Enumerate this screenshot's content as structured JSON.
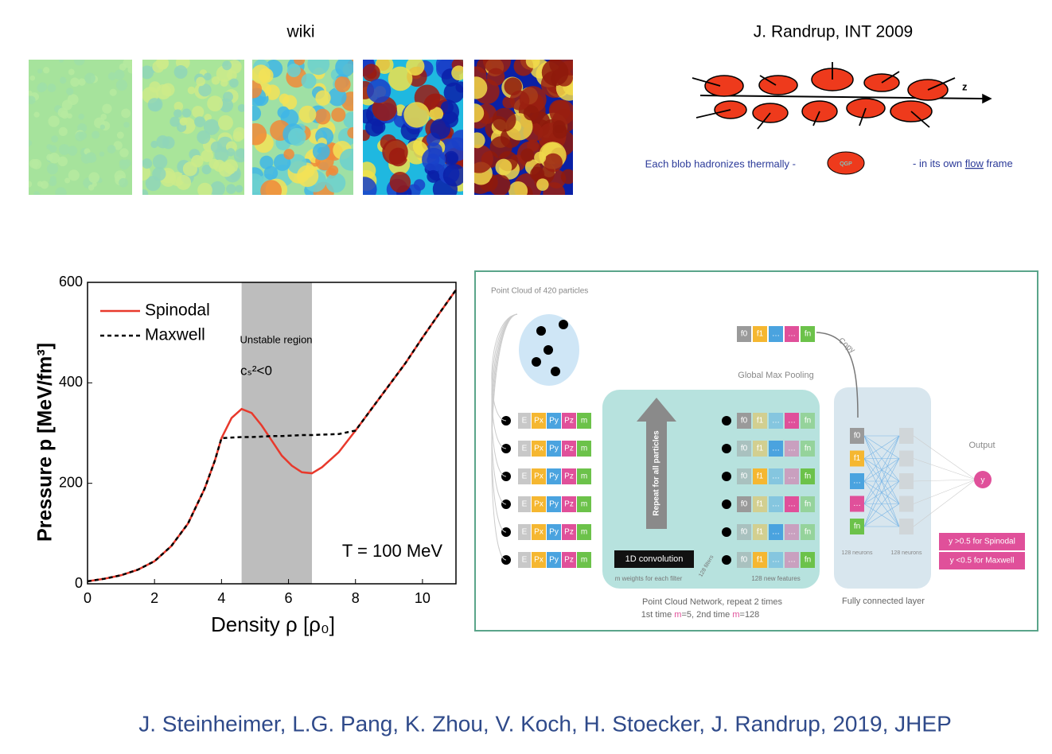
{
  "panels": {
    "wiki": {
      "title": "wiki"
    },
    "randrup": {
      "title": "J. Randrup, INT 2009",
      "axis_label": "z",
      "caption_left": "Each blob hadronizes thermally -",
      "blob_label": "QGP",
      "caption_right_pre": "- in its own",
      "caption_right_link": "flow",
      "caption_right_post": "frame"
    }
  },
  "chart_data": {
    "type": "line",
    "x_label": "Density ρ [ρ₀]",
    "y_label": "Pressure p [MeV/fm³]",
    "annotations": [
      "Unstable region",
      "cₛ²<0",
      "T = 100 MeV"
    ],
    "shaded_region": [
      4.6,
      6.7
    ],
    "legend": "upper left",
    "x": [
      0,
      0.5,
      1,
      1.5,
      2,
      2.5,
      3,
      3.5,
      3.8,
      4,
      4.3,
      4.6,
      4.9,
      5.2,
      5.5,
      5.8,
      6.1,
      6.4,
      6.7,
      7,
      7.5,
      8,
      8.5,
      9,
      9.5,
      10,
      10.5,
      11
    ],
    "series": [
      {
        "name": "Spinodal",
        "color": "#e8392c",
        "dash": false,
        "values": [
          5,
          10,
          17,
          28,
          45,
          75,
          120,
          190,
          245,
          290,
          330,
          348,
          340,
          315,
          285,
          255,
          235,
          222,
          220,
          232,
          262,
          305,
          350,
          395,
          440,
          490,
          538,
          585
        ]
      },
      {
        "name": "Maxwell",
        "color": "#000000",
        "dash": true,
        "values": [
          5,
          10,
          17,
          28,
          45,
          75,
          120,
          190,
          245,
          290,
          291,
          292,
          292,
          293,
          294,
          294,
          295,
          296,
          296,
          297,
          298,
          305,
          350,
          395,
          440,
          490,
          538,
          585
        ]
      }
    ],
    "xlim": [
      0,
      11
    ],
    "ylim": [
      0,
      600
    ],
    "xticks": [
      0,
      2,
      4,
      6,
      8,
      10
    ],
    "yticks": [
      0,
      200,
      400,
      600
    ]
  },
  "network": {
    "title": "Point Cloud of 420 particles",
    "input_rows": [
      [
        "E",
        "Px",
        "Py",
        "Pz",
        "m"
      ],
      [
        "E",
        "Px",
        "Py",
        "Pz",
        "m"
      ],
      [
        "E",
        "Px",
        "Py",
        "Pz",
        "m"
      ],
      [
        "E",
        "Px",
        "Py",
        "Pz",
        "m"
      ],
      [
        "E",
        "Px",
        "Py",
        "Pz",
        "m"
      ],
      [
        "E",
        "Px",
        "Py",
        "Pz",
        "m"
      ]
    ],
    "feature_rows": [
      [
        "f0",
        "f1",
        "…",
        "…",
        "fn"
      ],
      [
        "f0",
        "f1",
        "…",
        "…",
        "fn"
      ],
      [
        "f0",
        "f1",
        "…",
        "…",
        "fn"
      ],
      [
        "f0",
        "f1",
        "…",
        "…",
        "fn"
      ],
      [
        "f0",
        "f1",
        "…",
        "…",
        "fn"
      ],
      [
        "f0",
        "f1",
        "…",
        "…",
        "fn"
      ]
    ],
    "pooled": [
      "f0",
      "f1",
      "…",
      "…",
      "fn"
    ],
    "pool_label": "Global Max Pooling",
    "copy_label": "Copy",
    "repeat_label": "Repeat for all particles",
    "conv_label": "1D convolution",
    "weights_label": "m weights for each filter",
    "filters_label": "128 filters",
    "features_label": "128 new features",
    "pcn_label": "Point Cloud Network, repeat 2 times",
    "pcn_sub": [
      "1st time ",
      "m",
      "=5, 2nd time ",
      "m",
      "=128"
    ],
    "fc_column": [
      "f0",
      "f1",
      "…",
      "…",
      "fn"
    ],
    "neurons_labels": [
      "128 neurons",
      "128 neurons"
    ],
    "fc_label": "Fully connected layer",
    "output_label": "Output",
    "output_node": "y",
    "outputs": [
      "y >0.5 for Spinodal",
      "y <0.5 for Maxwell"
    ]
  },
  "footer": "J. Steinheimer, L.G. Pang, K. Zhou, V. Koch, H. Stoecker, J. Randrup, 2019, JHEP"
}
